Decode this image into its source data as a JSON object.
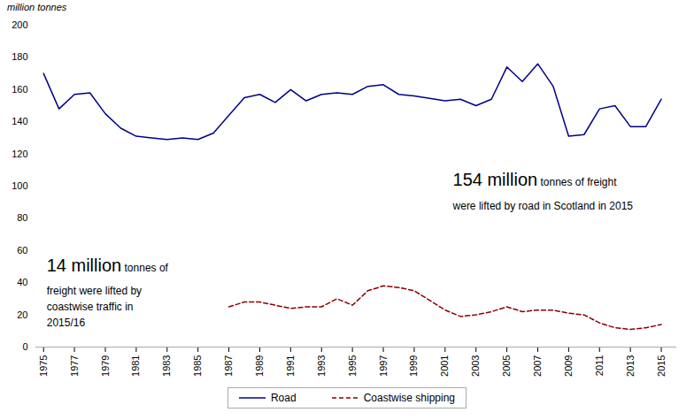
{
  "chart_data": {
    "type": "line",
    "ylabel": "million tonnes",
    "series": [
      {
        "name": "Road",
        "color": "#00008B",
        "line_style": "solid",
        "x": [
          1975,
          1976,
          1977,
          1978,
          1979,
          1980,
          1981,
          1982,
          1983,
          1984,
          1985,
          1986,
          1988,
          1989,
          1990,
          1991,
          1992,
          1993,
          1994,
          1995,
          1996,
          1997,
          1998,
          1999,
          2001,
          2002,
          2003,
          2004,
          2005,
          2006,
          2007,
          2008,
          2009,
          2010,
          2011,
          2012,
          2013,
          2014,
          2015
        ],
        "values": [
          170,
          148,
          157,
          158,
          145,
          136,
          131,
          130,
          129,
          130,
          129,
          133,
          155,
          157,
          152,
          160,
          153,
          157,
          158,
          157,
          162,
          163,
          157,
          156,
          153,
          154,
          150,
          154,
          174,
          165,
          176,
          162,
          131,
          132,
          148,
          150,
          137,
          137,
          154
        ]
      },
      {
        "name": "Coastwise shipping",
        "color": "#8B0000",
        "line_style": "dashed",
        "x": [
          1987,
          1988,
          1989,
          1990,
          1991,
          1992,
          1993,
          1994,
          1995,
          1996,
          1997,
          1998,
          1999,
          2001,
          2002,
          2003,
          2004,
          2005,
          2006,
          2007,
          2008,
          2009,
          2010,
          2011,
          2012,
          2013,
          2014,
          2015
        ],
        "values": [
          25,
          28,
          28,
          26,
          24,
          25,
          25,
          30,
          26,
          35,
          38,
          37,
          35,
          23,
          19,
          20,
          22,
          25,
          22,
          23,
          23,
          21,
          20,
          15,
          12,
          11,
          12,
          14
        ]
      }
    ],
    "xlim": [
      1974.5,
      2016
    ],
    "xticks": [
      1975,
      1977,
      1979,
      1981,
      1983,
      1985,
      1987,
      1989,
      1991,
      1993,
      1995,
      1997,
      1999,
      2001,
      2003,
      2005,
      2007,
      2009,
      2011,
      2013,
      2015
    ],
    "ylim": [
      0,
      200
    ],
    "yticks": [
      0,
      20,
      40,
      60,
      80,
      100,
      120,
      140,
      160,
      180,
      200
    ],
    "grid": false,
    "legend": "bottom",
    "annotations": [
      {
        "x": 2001.5,
        "y": 108,
        "emphasis": "154 million",
        "text": [
          "tonnes of freight",
          "were lifted by road in Scotland in 2015"
        ]
      },
      {
        "x": 1975.2,
        "y": 55,
        "emphasis": "14 million",
        "text": [
          "tonnes of",
          "freight were lifted by",
          "coastwise traffic in",
          "2015/16"
        ]
      }
    ]
  }
}
